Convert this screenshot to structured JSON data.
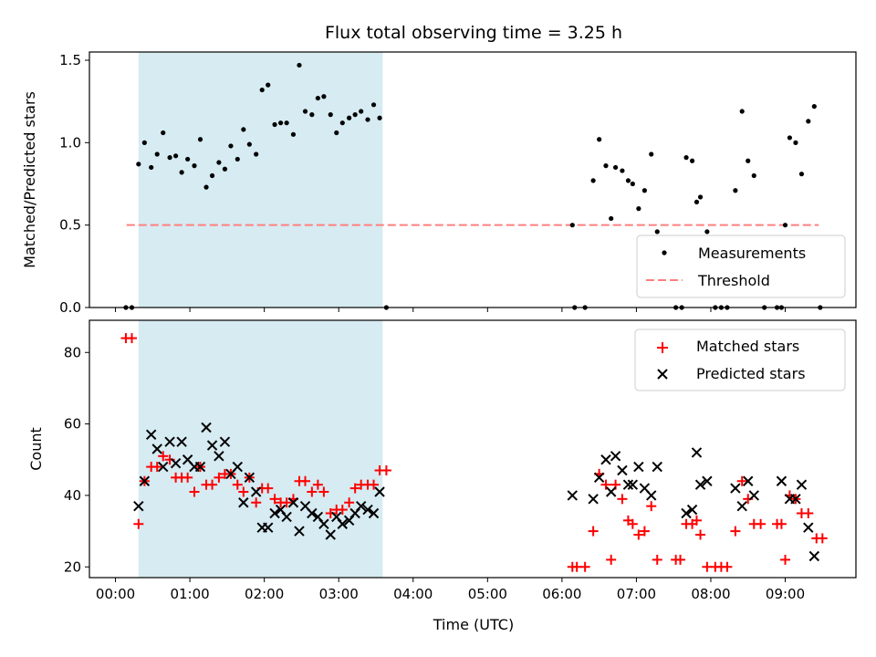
{
  "chart_data": [
    {
      "type": "scatter",
      "title": "Flux total observing time = 3.25 h",
      "xlabel": "",
      "ylabel": "Matched/Predicted stars",
      "x_unit": "hours UTC",
      "xlim": [
        -0.35,
        9.95
      ],
      "ylim": [
        0.0,
        1.55
      ],
      "yticks": [
        0.0,
        0.5,
        1.0,
        1.5
      ],
      "ytick_labels": [
        "0.0",
        "0.5",
        "1.0",
        "1.5"
      ],
      "shaded_span": {
        "x_start": 0.31,
        "x_end": 3.59,
        "color": "#add8e6"
      },
      "threshold": {
        "name": "Threshold",
        "y": 0.5,
        "x_start": 0.15,
        "x_end": 9.45,
        "color": "#ff7f7f",
        "style": "dashed"
      },
      "legend_position": "lower-right",
      "series": [
        {
          "name": "Measurements",
          "marker": "dot",
          "color": "#000000",
          "points": [
            [
              0.14,
              0.0
            ],
            [
              0.22,
              0.0
            ],
            [
              0.31,
              0.87
            ],
            [
              0.39,
              1.0
            ],
            [
              0.48,
              0.85
            ],
            [
              0.56,
              0.93
            ],
            [
              0.64,
              1.06
            ],
            [
              0.73,
              0.91
            ],
            [
              0.81,
              0.92
            ],
            [
              0.89,
              0.82
            ],
            [
              0.97,
              0.9
            ],
            [
              1.06,
              0.86
            ],
            [
              1.14,
              1.02
            ],
            [
              1.22,
              0.73
            ],
            [
              1.3,
              0.8
            ],
            [
              1.39,
              0.88
            ],
            [
              1.47,
              0.84
            ],
            [
              1.55,
              0.98
            ],
            [
              1.64,
              0.9
            ],
            [
              1.72,
              1.08
            ],
            [
              1.8,
              0.99
            ],
            [
              1.89,
              0.93
            ],
            [
              1.97,
              1.32
            ],
            [
              2.05,
              1.35
            ],
            [
              2.14,
              1.11
            ],
            [
              2.22,
              1.12
            ],
            [
              2.3,
              1.12
            ],
            [
              2.39,
              1.05
            ],
            [
              2.47,
              1.47
            ],
            [
              2.55,
              1.19
            ],
            [
              2.64,
              1.17
            ],
            [
              2.72,
              1.27
            ],
            [
              2.8,
              1.28
            ],
            [
              2.89,
              1.17
            ],
            [
              2.97,
              1.06
            ],
            [
              3.05,
              1.12
            ],
            [
              3.14,
              1.15
            ],
            [
              3.22,
              1.17
            ],
            [
              3.3,
              1.19
            ],
            [
              3.39,
              1.14
            ],
            [
              3.47,
              1.23
            ],
            [
              3.55,
              1.15
            ],
            [
              3.64,
              0.0
            ],
            [
              6.14,
              0.5
            ],
            [
              6.17,
              0.0
            ],
            [
              6.31,
              0.0
            ],
            [
              6.42,
              0.77
            ],
            [
              6.5,
              1.02
            ],
            [
              6.59,
              0.86
            ],
            [
              6.66,
              0.54
            ],
            [
              6.72,
              0.85
            ],
            [
              6.81,
              0.83
            ],
            [
              6.89,
              0.77
            ],
            [
              6.95,
              0.75
            ],
            [
              7.03,
              0.6
            ],
            [
              7.11,
              0.71
            ],
            [
              7.2,
              0.93
            ],
            [
              7.28,
              0.46
            ],
            [
              7.53,
              0.0
            ],
            [
              7.61,
              0.0
            ],
            [
              7.67,
              0.91
            ],
            [
              7.75,
              0.89
            ],
            [
              7.81,
              0.64
            ],
            [
              7.86,
              0.67
            ],
            [
              7.95,
              0.46
            ],
            [
              8.06,
              0.0
            ],
            [
              8.14,
              0.0
            ],
            [
              8.22,
              0.0
            ],
            [
              8.33,
              0.71
            ],
            [
              8.42,
              1.19
            ],
            [
              8.5,
              0.89
            ],
            [
              8.58,
              0.8
            ],
            [
              8.72,
              0.0
            ],
            [
              8.89,
              0.0
            ],
            [
              8.95,
              0.0
            ],
            [
              9.0,
              0.5
            ],
            [
              9.06,
              1.03
            ],
            [
              9.14,
              1.0
            ],
            [
              9.22,
              0.81
            ],
            [
              9.31,
              1.13
            ],
            [
              9.39,
              1.22
            ],
            [
              9.47,
              0.0
            ]
          ]
        }
      ]
    },
    {
      "type": "scatter",
      "title": "",
      "xlabel": "Time (UTC)",
      "ylabel": "Count",
      "x_unit": "hours UTC",
      "xlim": [
        -0.35,
        9.95
      ],
      "ylim": [
        17,
        89
      ],
      "yticks": [
        20,
        40,
        60,
        80
      ],
      "ytick_labels": [
        "20",
        "40",
        "60",
        "80"
      ],
      "xticks": [
        0,
        1,
        2,
        3,
        4,
        5,
        6,
        7,
        8,
        9
      ],
      "xtick_labels": [
        "00:00",
        "01:00",
        "02:00",
        "03:00",
        "04:00",
        "05:00",
        "06:00",
        "07:00",
        "08:00",
        "09:00"
      ],
      "shaded_span": {
        "x_start": 0.31,
        "x_end": 3.59,
        "color": "#add8e6"
      },
      "legend_position": "top-right",
      "series": [
        {
          "name": "Matched stars",
          "marker": "plus",
          "color": "#ff0000",
          "points": [
            [
              0.14,
              84
            ],
            [
              0.22,
              84
            ],
            [
              0.31,
              32
            ],
            [
              0.39,
              44
            ],
            [
              0.48,
              48
            ],
            [
              0.56,
              48
            ],
            [
              0.64,
              51
            ],
            [
              0.73,
              50
            ],
            [
              0.81,
              45
            ],
            [
              0.89,
              45
            ],
            [
              0.97,
              45
            ],
            [
              1.06,
              41
            ],
            [
              1.14,
              48
            ],
            [
              1.22,
              43
            ],
            [
              1.3,
              43
            ],
            [
              1.39,
              45
            ],
            [
              1.47,
              46
            ],
            [
              1.55,
              46
            ],
            [
              1.64,
              43
            ],
            [
              1.72,
              41
            ],
            [
              1.8,
              45
            ],
            [
              1.89,
              38
            ],
            [
              1.97,
              42
            ],
            [
              2.05,
              42
            ],
            [
              2.14,
              39
            ],
            [
              2.22,
              38
            ],
            [
              2.3,
              38
            ],
            [
              2.39,
              39
            ],
            [
              2.47,
              44
            ],
            [
              2.55,
              44
            ],
            [
              2.64,
              41
            ],
            [
              2.72,
              43
            ],
            [
              2.8,
              41
            ],
            [
              2.89,
              35
            ],
            [
              2.97,
              36
            ],
            [
              3.05,
              36
            ],
            [
              3.14,
              38
            ],
            [
              3.22,
              42
            ],
            [
              3.3,
              43
            ],
            [
              3.39,
              43
            ],
            [
              3.47,
              43
            ],
            [
              3.55,
              47
            ],
            [
              3.64,
              47
            ],
            [
              6.14,
              20
            ],
            [
              6.2,
              20
            ],
            [
              6.31,
              20
            ],
            [
              6.42,
              30
            ],
            [
              6.5,
              46
            ],
            [
              6.59,
              43
            ],
            [
              6.66,
              22
            ],
            [
              6.72,
              43
            ],
            [
              6.81,
              39
            ],
            [
              6.89,
              33
            ],
            [
              6.95,
              32
            ],
            [
              7.03,
              29
            ],
            [
              7.11,
              30
            ],
            [
              7.2,
              37
            ],
            [
              7.28,
              22
            ],
            [
              7.53,
              22
            ],
            [
              7.59,
              22
            ],
            [
              7.67,
              32
            ],
            [
              7.75,
              32
            ],
            [
              7.81,
              33
            ],
            [
              7.86,
              29
            ],
            [
              7.95,
              20
            ],
            [
              8.06,
              20
            ],
            [
              8.14,
              20
            ],
            [
              8.22,
              20
            ],
            [
              8.33,
              30
            ],
            [
              8.42,
              44
            ],
            [
              8.5,
              39
            ],
            [
              8.58,
              32
            ],
            [
              8.67,
              32
            ],
            [
              8.89,
              32
            ],
            [
              8.95,
              32
            ],
            [
              9.0,
              22
            ],
            [
              9.06,
              40
            ],
            [
              9.14,
              39
            ],
            [
              9.22,
              35
            ],
            [
              9.31,
              35
            ],
            [
              9.42,
              28
            ],
            [
              9.5,
              28
            ]
          ]
        },
        {
          "name": "Predicted stars",
          "marker": "x",
          "color": "#000000",
          "points": [
            [
              0.31,
              37
            ],
            [
              0.39,
              44
            ],
            [
              0.48,
              57
            ],
            [
              0.56,
              53
            ],
            [
              0.64,
              48
            ],
            [
              0.73,
              55
            ],
            [
              0.81,
              49
            ],
            [
              0.89,
              55
            ],
            [
              0.97,
              50
            ],
            [
              1.06,
              48
            ],
            [
              1.14,
              48
            ],
            [
              1.22,
              59
            ],
            [
              1.3,
              54
            ],
            [
              1.39,
              51
            ],
            [
              1.47,
              55
            ],
            [
              1.55,
              46
            ],
            [
              1.64,
              48
            ],
            [
              1.72,
              38
            ],
            [
              1.8,
              45
            ],
            [
              1.89,
              41
            ],
            [
              1.97,
              31
            ],
            [
              2.05,
              31
            ],
            [
              2.14,
              35
            ],
            [
              2.22,
              36
            ],
            [
              2.3,
              34
            ],
            [
              2.39,
              38
            ],
            [
              2.47,
              30
            ],
            [
              2.55,
              37
            ],
            [
              2.64,
              35
            ],
            [
              2.72,
              34
            ],
            [
              2.8,
              32
            ],
            [
              2.89,
              29
            ],
            [
              2.97,
              34
            ],
            [
              3.05,
              32
            ],
            [
              3.14,
              33
            ],
            [
              3.22,
              35
            ],
            [
              3.3,
              37
            ],
            [
              3.39,
              36
            ],
            [
              3.47,
              35
            ],
            [
              3.55,
              41
            ],
            [
              6.14,
              40
            ],
            [
              6.42,
              39
            ],
            [
              6.5,
              45
            ],
            [
              6.59,
              50
            ],
            [
              6.66,
              41
            ],
            [
              6.72,
              51
            ],
            [
              6.81,
              47
            ],
            [
              6.89,
              43
            ],
            [
              6.95,
              43
            ],
            [
              7.03,
              48
            ],
            [
              7.11,
              42
            ],
            [
              7.2,
              40
            ],
            [
              7.28,
              48
            ],
            [
              7.67,
              35
            ],
            [
              7.75,
              36
            ],
            [
              7.81,
              52
            ],
            [
              7.86,
              43
            ],
            [
              7.95,
              44
            ],
            [
              8.33,
              42
            ],
            [
              8.42,
              37
            ],
            [
              8.5,
              44
            ],
            [
              8.58,
              40
            ],
            [
              8.95,
              44
            ],
            [
              9.06,
              39
            ],
            [
              9.14,
              39
            ],
            [
              9.22,
              43
            ],
            [
              9.31,
              31
            ],
            [
              9.39,
              23
            ]
          ]
        }
      ]
    }
  ]
}
